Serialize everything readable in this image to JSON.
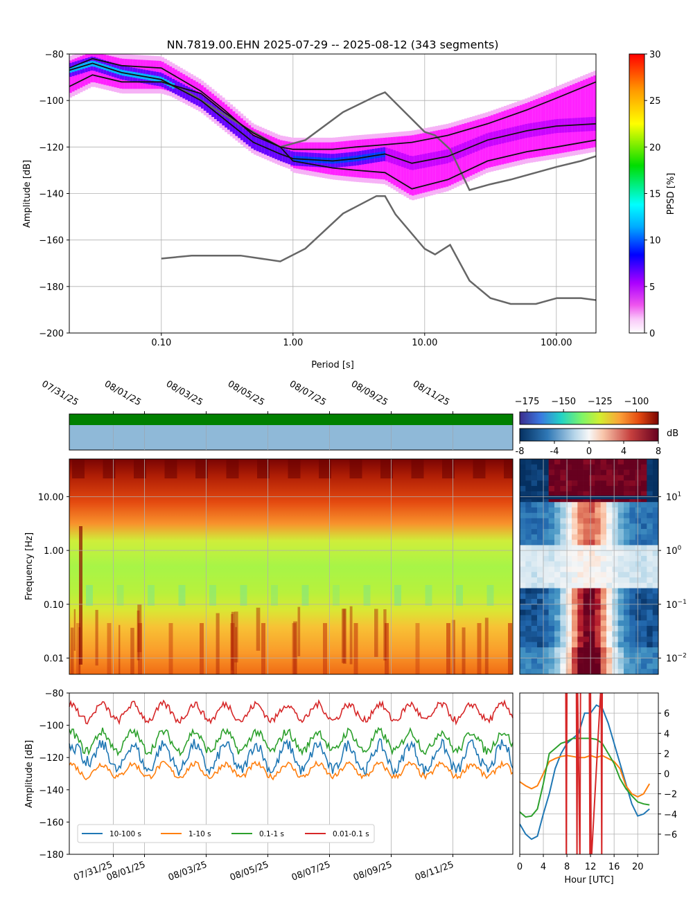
{
  "title": "NN.7819.00.EHN   2025-07-29 -- 2025-08-12  (343 segments)",
  "chart_data": [
    {
      "id": "ppsd",
      "type": "heatmap",
      "title": "NN.7819.00.EHN   2025-07-29 -- 2025-08-12  (343 segments)",
      "xlabel": "Period [s]",
      "ylabel": "Amplitude [dB]",
      "xscale": "log",
      "xlim": [
        0.02,
        200
      ],
      "ylim": [
        -200,
        -80
      ],
      "xticks": [
        "0.10",
        "1.00",
        "10.00",
        "100.00"
      ],
      "yticks": [
        "−200",
        "−180",
        "−160",
        "−140",
        "−120",
        "−100",
        "−80"
      ],
      "grid": true,
      "colorbar": {
        "label": "PPSD [%]",
        "range": [
          0,
          30
        ],
        "ticks": [
          "0",
          "5",
          "10",
          "15",
          "20",
          "25",
          "30"
        ]
      },
      "percentile_lines": [
        {
          "name": "upper",
          "x": [
            0.02,
            0.03,
            0.05,
            0.1,
            0.2,
            0.3,
            0.5,
            0.8,
            1,
            2,
            3,
            5,
            8,
            15,
            30,
            60,
            100,
            200
          ],
          "y": [
            -86,
            -82,
            -85,
            -86,
            -96,
            -104,
            -115,
            -120,
            -121,
            -121,
            -120,
            -119,
            -118,
            -115,
            -110,
            -104,
            -99,
            -92
          ]
        },
        {
          "name": "mode",
          "x": [
            0.02,
            0.03,
            0.05,
            0.1,
            0.2,
            0.3,
            0.5,
            0.8,
            1,
            2,
            3,
            5,
            8,
            15,
            30,
            60,
            100,
            200
          ],
          "y": [
            -87,
            -84,
            -88,
            -91,
            -100,
            -108,
            -118,
            -123,
            -125,
            -126,
            -125,
            -123,
            -127,
            -124,
            -117,
            -113,
            -111,
            -110
          ]
        },
        {
          "name": "lower",
          "x": [
            0.02,
            0.03,
            0.05,
            0.1,
            0.2,
            0.3,
            0.5,
            0.8,
            1,
            2,
            3,
            5,
            8,
            15,
            30,
            60,
            100,
            200
          ],
          "y": [
            -94,
            -89,
            -92,
            -92,
            -97,
            -105,
            -114,
            -120,
            -126,
            -129,
            -130,
            -131,
            -138,
            -134,
            -126,
            -122,
            -120,
            -117
          ]
        }
      ],
      "noise_models": [
        {
          "name": "NHNM",
          "x": [
            0.1,
            0.17,
            0.4,
            0.8,
            1.24,
            2.4,
            4.3,
            5,
            6,
            10,
            12,
            15.6,
            21.9,
            31.6,
            45,
            70,
            101,
            154,
            328,
            600,
            10000
          ],
          "y": [
            -91.5,
            -97.4,
            -110.5,
            -120,
            -117,
            -105,
            -98,
            -96.5,
            -101,
            -113.5,
            -115,
            -121,
            -138.5,
            -136,
            -134,
            -131,
            -128.5,
            -126,
            -120,
            -100,
            -80
          ]
        },
        {
          "name": "NLNM",
          "x": [
            0.1,
            0.17,
            0.4,
            0.8,
            1.24,
            2.4,
            4.3,
            5,
            6,
            10,
            12,
            15.6,
            21.9,
            31.6,
            45,
            70,
            101,
            154,
            328,
            600,
            10000
          ],
          "y": [
            -168,
            -166.7,
            -166.7,
            -169.2,
            -163.7,
            -148.6,
            -141.1,
            -141.1,
            -149,
            -163.8,
            -166.2,
            -162.1,
            -177.5,
            -185,
            -187.5,
            -187.5,
            -185,
            -185,
            -187.5,
            -184,
            -168
          ]
        }
      ]
    },
    {
      "id": "spectrogram",
      "type": "heatmap",
      "ylabel": "Frequency [Hz]",
      "yscale": "log",
      "ylim": [
        0.005,
        50
      ],
      "yticks": [
        "0.01",
        "0.10",
        "1.00",
        "10.00"
      ],
      "xlim": [
        "07/29/25 12:00",
        "08/12/25 12:00"
      ],
      "xticks": [
        "07/31/25",
        "08/01/25",
        "08/03/25",
        "08/05/25",
        "08/07/25",
        "08/09/25",
        "08/11/25"
      ],
      "colorbar": {
        "label": "",
        "range": [
          -180,
          -85
        ],
        "ticks": [
          "−175",
          "−150",
          "−125",
          "−100"
        ]
      },
      "availability": {
        "status": "complete",
        "bar_colors": [
          "#008000",
          "#8fb9d8"
        ]
      }
    },
    {
      "id": "daily-deviation",
      "type": "heatmap",
      "xlim": [
        0,
        23
      ],
      "yscale": "log",
      "yticks": [
        "10^-2",
        "10^-1",
        "10^0",
        "10^1"
      ],
      "colorbar": {
        "label": "dB",
        "range": [
          -8,
          8
        ],
        "ticks": [
          "-8",
          "-4",
          "0",
          "4",
          "8"
        ]
      }
    },
    {
      "id": "band-timeseries",
      "type": "line",
      "ylabel": "Amplitude [dB]",
      "ylim": [
        -180,
        -80
      ],
      "yticks": [
        "−180",
        "−160",
        "−140",
        "−120",
        "−100",
        "−80"
      ],
      "xticks": [
        "07/31/25",
        "08/01/25",
        "08/03/25",
        "08/05/25",
        "08/07/25",
        "08/09/25",
        "08/11/25"
      ],
      "legend": "lower-left",
      "series": [
        {
          "name": "10-100 s",
          "color": "#1f77b4",
          "base": -120,
          "amp": 8
        },
        {
          "name": "1-10 s",
          "color": "#ff7f0e",
          "base": -128,
          "amp": 4
        },
        {
          "name": "0.1-1 s",
          "color": "#2ca02c",
          "base": -110,
          "amp": 6
        },
        {
          "name": "0.01-0.1 s",
          "color": "#d62728",
          "base": -92,
          "amp": 5
        }
      ]
    },
    {
      "id": "hourly-deviation",
      "type": "line",
      "xlabel": "Hour [UTC]",
      "xlim": [
        0,
        23
      ],
      "ylim": [
        -8,
        8
      ],
      "xticks": [
        "0",
        "4",
        "8",
        "12",
        "16",
        "20"
      ],
      "yticks": [
        "−6",
        "−4",
        "−2",
        "0",
        "2",
        "4",
        "6"
      ],
      "series": [
        {
          "name": "10-100 s",
          "color": "#1f77b4",
          "x": [
            0,
            1,
            2,
            3,
            4,
            5,
            6,
            7,
            8,
            9,
            10,
            11,
            12,
            13,
            14,
            15,
            16,
            17,
            18,
            19,
            20,
            21,
            22
          ],
          "y": [
            -5,
            -6,
            -6.5,
            -6.2,
            -4,
            -2,
            0.5,
            2,
            3,
            3.5,
            4,
            6,
            6,
            6.8,
            6.5,
            5,
            3,
            1,
            -1,
            -3,
            -4.2,
            -4,
            -3.5
          ]
        },
        {
          "name": "1-10 s",
          "color": "#ff7f0e",
          "x": [
            0,
            1,
            2,
            3,
            4,
            5,
            6,
            7,
            8,
            9,
            10,
            11,
            12,
            13,
            14,
            15,
            16,
            17,
            18,
            19,
            20,
            21,
            22
          ],
          "y": [
            -0.8,
            -1.2,
            -1.5,
            -1.2,
            0,
            1.2,
            1.5,
            1.7,
            1.8,
            1.7,
            1.6,
            1.6,
            1.8,
            1.6,
            1.8,
            1.5,
            1.2,
            0.5,
            -1.2,
            -2,
            -2.3,
            -2,
            -1
          ]
        },
        {
          "name": "0.1-1 s",
          "color": "#2ca02c",
          "x": [
            0,
            1,
            2,
            3,
            4,
            5,
            6,
            7,
            8,
            9,
            10,
            11,
            12,
            13,
            14,
            15,
            16,
            17,
            18,
            19,
            20,
            21,
            22
          ],
          "y": [
            -3.8,
            -4.3,
            -4.2,
            -3.5,
            -1,
            2,
            2.5,
            3,
            3.2,
            3.5,
            3.5,
            3.5,
            3.5,
            3.4,
            3,
            2,
            1,
            -0.5,
            -1.5,
            -2.2,
            -2.8,
            -3,
            -3.1
          ]
        },
        {
          "name": "0.01-0.1 s",
          "color": "#d62728",
          "x": [
            7.8,
            7.9,
            8,
            9.6,
            9.7,
            9.8,
            10.2,
            10.3,
            11.8,
            11.9,
            12,
            12.1,
            13.8,
            13.9,
            14
          ],
          "y": [
            9,
            -9,
            9,
            9,
            -9,
            9,
            -9,
            9,
            9,
            -9,
            9,
            -9,
            9,
            -9,
            9
          ]
        }
      ]
    }
  ]
}
